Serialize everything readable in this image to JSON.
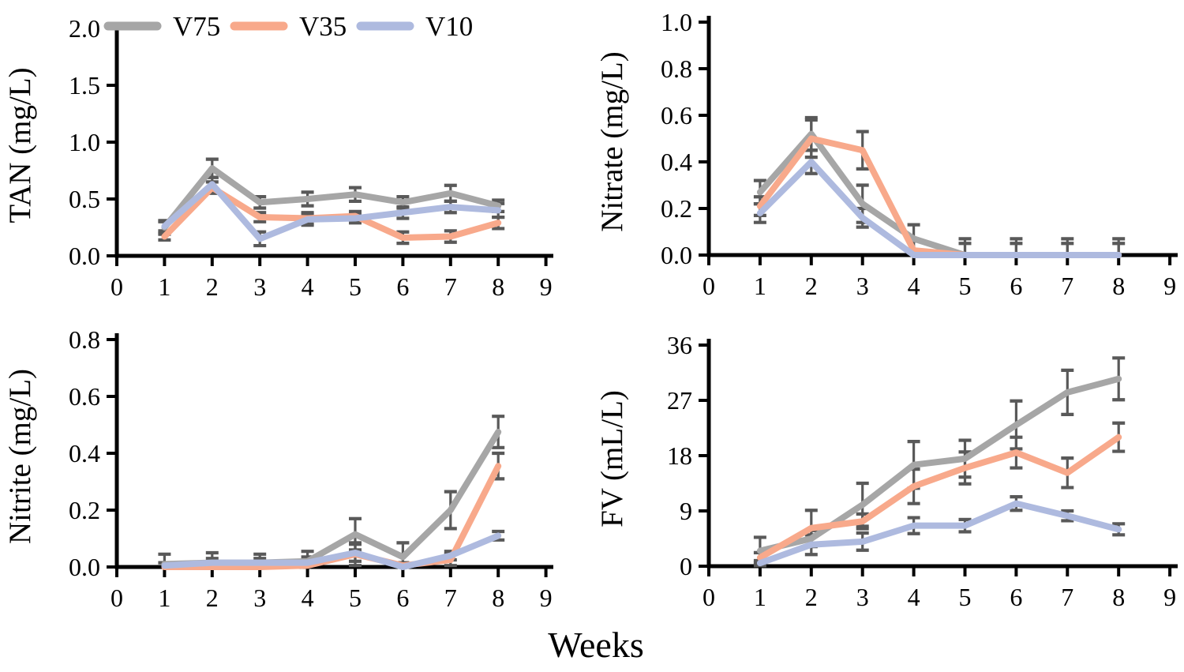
{
  "figure": {
    "xlabel": "Weeks",
    "colors": {
      "V75": "#A6A6A6",
      "V35": "#F8A98B",
      "V10": "#AEBADF",
      "error": "#595959",
      "axis": "#000000"
    },
    "legend": {
      "position": "top-left-panel",
      "items": [
        {
          "label": "V75"
        },
        {
          "label": "V35"
        },
        {
          "label": "V10"
        }
      ]
    }
  },
  "chart_data": [
    {
      "type": "line",
      "panel": "top-left",
      "title": "",
      "ylabel": "TAN (mg/L)",
      "xlabel": "Weeks",
      "x": [
        1,
        2,
        3,
        4,
        5,
        6,
        7,
        8
      ],
      "xlim": [
        0,
        9
      ],
      "xticks": [
        0,
        1,
        2,
        3,
        4,
        5,
        6,
        7,
        8,
        9
      ],
      "ylim": [
        0,
        2.0
      ],
      "yticks": [
        0.0,
        0.5,
        1.0,
        1.5,
        2.0
      ],
      "ytick_labels": [
        "0.0",
        "0.5",
        "1.0",
        "1.5",
        "2.0"
      ],
      "grid": false,
      "error_bars": true,
      "series": [
        {
          "name": "V75",
          "values": [
            0.25,
            0.77,
            0.47,
            0.5,
            0.54,
            0.47,
            0.55,
            0.44
          ],
          "errors": [
            0.06,
            0.08,
            0.05,
            0.06,
            0.06,
            0.05,
            0.07,
            0.05
          ]
        },
        {
          "name": "V35",
          "values": [
            0.17,
            0.6,
            0.34,
            0.33,
            0.35,
            0.16,
            0.17,
            0.29
          ],
          "errors": [
            0.03,
            0.05,
            0.04,
            0.05,
            0.04,
            0.05,
            0.05,
            0.05
          ]
        },
        {
          "name": "V10",
          "values": [
            0.26,
            0.63,
            0.15,
            0.32,
            0.33,
            0.38,
            0.43,
            0.4
          ],
          "errors": [
            0.04,
            0.06,
            0.06,
            0.05,
            0.04,
            0.05,
            0.05,
            0.06
          ]
        }
      ]
    },
    {
      "type": "line",
      "panel": "top-right",
      "title": "",
      "ylabel": "Nitrate (mg/L)",
      "xlabel": "Weeks",
      "x": [
        1,
        2,
        3,
        4,
        5,
        6,
        7,
        8
      ],
      "xlim": [
        0,
        9
      ],
      "xticks": [
        0,
        1,
        2,
        3,
        4,
        5,
        6,
        7,
        8,
        9
      ],
      "ylim": [
        0,
        1.0
      ],
      "yticks": [
        0.0,
        0.2,
        0.4,
        0.6,
        0.8,
        1.0
      ],
      "ytick_labels": [
        "0.0",
        "0.2",
        "0.4",
        "0.6",
        "0.8",
        "1.0"
      ],
      "grid": false,
      "error_bars": true,
      "series": [
        {
          "name": "V75",
          "values": [
            0.27,
            0.52,
            0.22,
            0.07,
            0.0,
            0.0,
            0.0,
            0.0
          ],
          "errors": [
            0.05,
            0.07,
            0.08,
            0.06,
            0.07,
            0.07,
            0.07,
            0.07
          ]
        },
        {
          "name": "V35",
          "values": [
            0.21,
            0.5,
            0.45,
            0.02,
            0.0,
            0.0,
            0.0,
            0.0
          ],
          "errors": [
            0.04,
            0.08,
            0.08,
            0.04,
            0.05,
            0.05,
            0.05,
            0.05
          ]
        },
        {
          "name": "V10",
          "values": [
            0.18,
            0.4,
            0.16,
            0.0,
            0.0,
            0.0,
            0.0,
            0.0
          ],
          "errors": [
            0.04,
            0.05,
            0.04,
            0.02,
            0,
            0,
            0,
            0
          ]
        }
      ]
    },
    {
      "type": "line",
      "panel": "bottom-left",
      "title": "",
      "ylabel": "Nitrite (mg/L)",
      "xlabel": "Weeks",
      "x": [
        1,
        2,
        3,
        4,
        5,
        6,
        7,
        8
      ],
      "xlim": [
        0,
        9
      ],
      "xticks": [
        0,
        1,
        2,
        3,
        4,
        5,
        6,
        7,
        8,
        9
      ],
      "ylim": [
        0,
        0.8
      ],
      "yticks": [
        0.0,
        0.2,
        0.4,
        0.6,
        0.8
      ],
      "ytick_labels": [
        "0.0",
        "0.2",
        "0.4",
        "0.6",
        "0.8"
      ],
      "grid": false,
      "error_bars": true,
      "series": [
        {
          "name": "V75",
          "values": [
            0.01,
            0.015,
            0.015,
            0.02,
            0.115,
            0.035,
            0.2,
            0.475
          ],
          "errors": [
            0.035,
            0.035,
            0.03,
            0.035,
            0.055,
            0.05,
            0.065,
            0.055
          ]
        },
        {
          "name": "V35",
          "values": [
            0.0,
            0.0,
            0.0,
            0.005,
            0.045,
            0.005,
            0.025,
            0.355
          ],
          "errors": [
            0,
            0,
            0,
            0.01,
            0.04,
            0.01,
            0.02,
            0.045
          ]
        },
        {
          "name": "V10",
          "values": [
            0.005,
            0.015,
            0.015,
            0.015,
            0.05,
            0.0,
            0.04,
            0.11
          ],
          "errors": [
            0.01,
            0.015,
            0.015,
            0.02,
            0.03,
            0.01,
            0.015,
            0.015
          ]
        }
      ]
    },
    {
      "type": "line",
      "panel": "bottom-right",
      "title": "",
      "ylabel": "FV (mL/L)",
      "xlabel": "Weeks",
      "x": [
        1,
        2,
        3,
        4,
        5,
        6,
        7,
        8
      ],
      "xlim": [
        0,
        9
      ],
      "xticks": [
        0,
        1,
        2,
        3,
        4,
        5,
        6,
        7,
        8,
        9
      ],
      "ylim": [
        0,
        36
      ],
      "yticks": [
        0,
        9,
        18,
        27,
        36
      ],
      "ytick_labels": [
        "0",
        "9",
        "18",
        "27",
        "36"
      ],
      "grid": false,
      "error_bars": true,
      "series": [
        {
          "name": "V75",
          "values": [
            2.5,
            4.5,
            10,
            16.5,
            17.5,
            23,
            28.3,
            30.5
          ],
          "errors": [
            2.2,
            1.3,
            3.5,
            3.8,
            3.0,
            3.9,
            3.6,
            3.4
          ]
        },
        {
          "name": "V35",
          "values": [
            1.4,
            6.2,
            7.3,
            13,
            16,
            18.5,
            15.2,
            21
          ],
          "errors": [
            0.8,
            2.9,
            1.2,
            2.8,
            2.6,
            2.5,
            2.4,
            2.3
          ]
        },
        {
          "name": "V10",
          "values": [
            0.5,
            3.5,
            4.0,
            6.6,
            6.6,
            10.2,
            8.2,
            6.0
          ],
          "errors": [
            0.4,
            1.6,
            1.4,
            1.3,
            1.0,
            1.1,
            0.8,
            0.9
          ]
        }
      ]
    }
  ]
}
